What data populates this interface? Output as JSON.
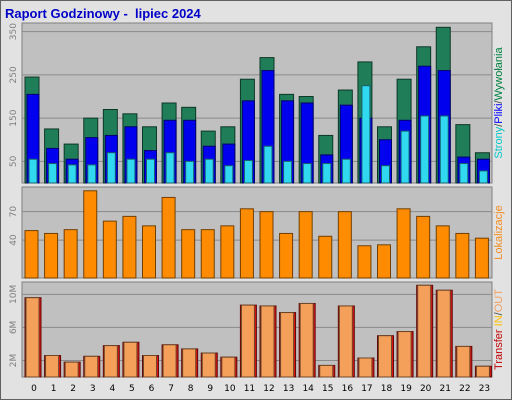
{
  "title": "Raport Godzinowy -  lipiec 2024",
  "chart_data": [
    {
      "type": "bar",
      "name": "visits",
      "categories": [
        "0",
        "1",
        "2",
        "3",
        "4",
        "5",
        "6",
        "7",
        "8",
        "9",
        "10",
        "11",
        "12",
        "13",
        "14",
        "15",
        "16",
        "17",
        "18",
        "19",
        "20",
        "21",
        "22",
        "23"
      ],
      "ylim": [
        0,
        370
      ],
      "yticks": [
        "50",
        "150",
        "250",
        "350"
      ],
      "ytick_values": [
        50,
        150,
        250,
        350
      ],
      "legend": {
        "parts": [
          "Strony",
          "/",
          "Pliki",
          "/",
          "Wywołania"
        ],
        "colors": [
          "#00c8c8",
          "#404040",
          "#0000ff",
          "#404040",
          "#008040"
        ]
      },
      "series": [
        {
          "name": "Wywołania",
          "color": "#1f7d58",
          "values": [
            245,
            125,
            90,
            150,
            170,
            160,
            130,
            185,
            175,
            120,
            130,
            240,
            290,
            205,
            200,
            110,
            215,
            280,
            130,
            240,
            315,
            360,
            135,
            70
          ]
        },
        {
          "name": "Pliki",
          "color": "#0000ee",
          "values": [
            205,
            80,
            55,
            105,
            110,
            130,
            75,
            145,
            145,
            85,
            90,
            190,
            260,
            190,
            185,
            65,
            180,
            150,
            100,
            145,
            270,
            260,
            60,
            55
          ]
        },
        {
          "name": "Strony",
          "color": "#30d8f0",
          "values": [
            55,
            45,
            42,
            42,
            70,
            55,
            55,
            70,
            50,
            55,
            40,
            52,
            85,
            50,
            45,
            45,
            55,
            225,
            40,
            120,
            155,
            155,
            45,
            28
          ]
        }
      ]
    },
    {
      "type": "bar",
      "name": "locations",
      "categories": [
        "0",
        "1",
        "2",
        "3",
        "4",
        "5",
        "6",
        "7",
        "8",
        "9",
        "10",
        "11",
        "12",
        "13",
        "14",
        "15",
        "16",
        "17",
        "18",
        "19",
        "20",
        "21",
        "22",
        "23"
      ],
      "ylim": [
        0,
        96
      ],
      "yticks": [
        "40",
        "70"
      ],
      "ytick_values": [
        40,
        70
      ],
      "legend": {
        "parts": [
          "Lokalizacje"
        ],
        "colors": [
          "#f28c1f"
        ]
      },
      "series": [
        {
          "name": "Lokalizacje",
          "color": "#ff8c00",
          "values": [
            50,
            47,
            51,
            92,
            60,
            65,
            55,
            85,
            51,
            51,
            55,
            73,
            70,
            47,
            70,
            44,
            70,
            34,
            35,
            73,
            65,
            55,
            47,
            42
          ]
        }
      ]
    },
    {
      "type": "bar",
      "name": "transfer",
      "categories": [
        "0",
        "1",
        "2",
        "3",
        "4",
        "5",
        "6",
        "7",
        "8",
        "9",
        "10",
        "11",
        "12",
        "13",
        "14",
        "15",
        "16",
        "17",
        "18",
        "19",
        "20",
        "21",
        "22",
        "23"
      ],
      "ylim": [
        0,
        11.5
      ],
      "yticks": [
        "2M",
        "6M",
        "10M"
      ],
      "ytick_values": [
        2,
        6,
        10
      ],
      "legend": {
        "parts": [
          "Transfer",
          " ",
          "IN",
          "/",
          "OUT"
        ],
        "colors": [
          "#c00000",
          "#404040",
          "#ffc000",
          "#404040",
          "#f0a060"
        ]
      },
      "series": [
        {
          "name": "Transfer",
          "color": "#dd1111",
          "values": [
            9.6,
            2.6,
            1.8,
            2.5,
            3.8,
            4.2,
            2.6,
            3.9,
            3.4,
            2.9,
            2.4,
            8.7,
            8.6,
            7.8,
            8.9,
            1.4,
            8.6,
            2.3,
            5.0,
            5.5,
            11.1,
            10.5,
            3.7,
            1.3
          ]
        },
        {
          "name": "OUT",
          "color": "#f5a05a",
          "values": [
            9.6,
            2.6,
            1.8,
            2.5,
            3.8,
            4.2,
            2.6,
            3.9,
            3.4,
            2.9,
            2.4,
            8.7,
            8.6,
            7.8,
            8.9,
            1.4,
            8.6,
            2.3,
            5.0,
            5.5,
            11.1,
            10.5,
            3.7,
            1.3
          ]
        }
      ]
    }
  ]
}
